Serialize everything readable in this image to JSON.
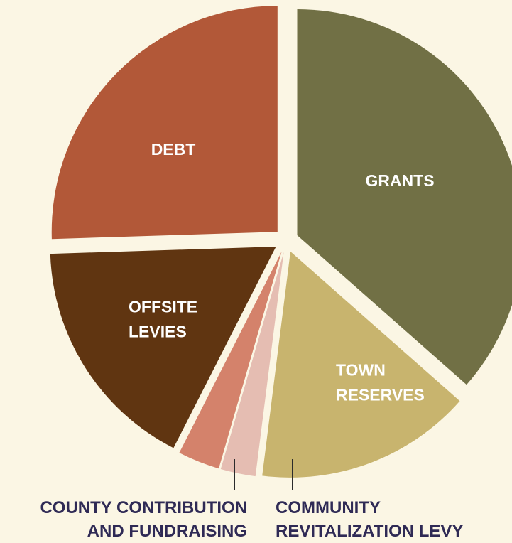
{
  "chart_data": {
    "type": "pie",
    "title": "",
    "unit": "percent",
    "slices": [
      {
        "name": "GRANTS",
        "label_lines": [
          "GRANTS"
        ],
        "value": 36.5,
        "color": "#717045",
        "label_style": "inside"
      },
      {
        "name": "TOWN RESERVES",
        "label_lines": [
          "TOWN",
          "RESERVES"
        ],
        "value": 15.5,
        "color": "#c8b46e",
        "label_style": "inside"
      },
      {
        "name": "COMMUNITY REVITALIZATION LEVY",
        "label_lines": [
          "COMMUNITY",
          "REVITALIZATION LEVY"
        ],
        "value": 2.5,
        "color": "#e5bdb2",
        "label_style": "callout"
      },
      {
        "name": "COUNTY CONTRIBUTION AND FUNDRAISING",
        "label_lines": [
          "COUNTY CONTRIBUTION",
          "AND FUNDRAISING"
        ],
        "value": 3.0,
        "color": "#d4826b",
        "label_style": "callout"
      },
      {
        "name": "OFFSITE LEVIES",
        "label_lines": [
          "OFFSITE",
          "LEVIES"
        ],
        "value": 17.0,
        "color": "#603511",
        "label_style": "inside"
      },
      {
        "name": "DEBT",
        "label_lines": [
          "DEBT"
        ],
        "value": 25.5,
        "color": "#b25838",
        "label_style": "inside"
      }
    ],
    "legend": "none",
    "exploded": true
  }
}
